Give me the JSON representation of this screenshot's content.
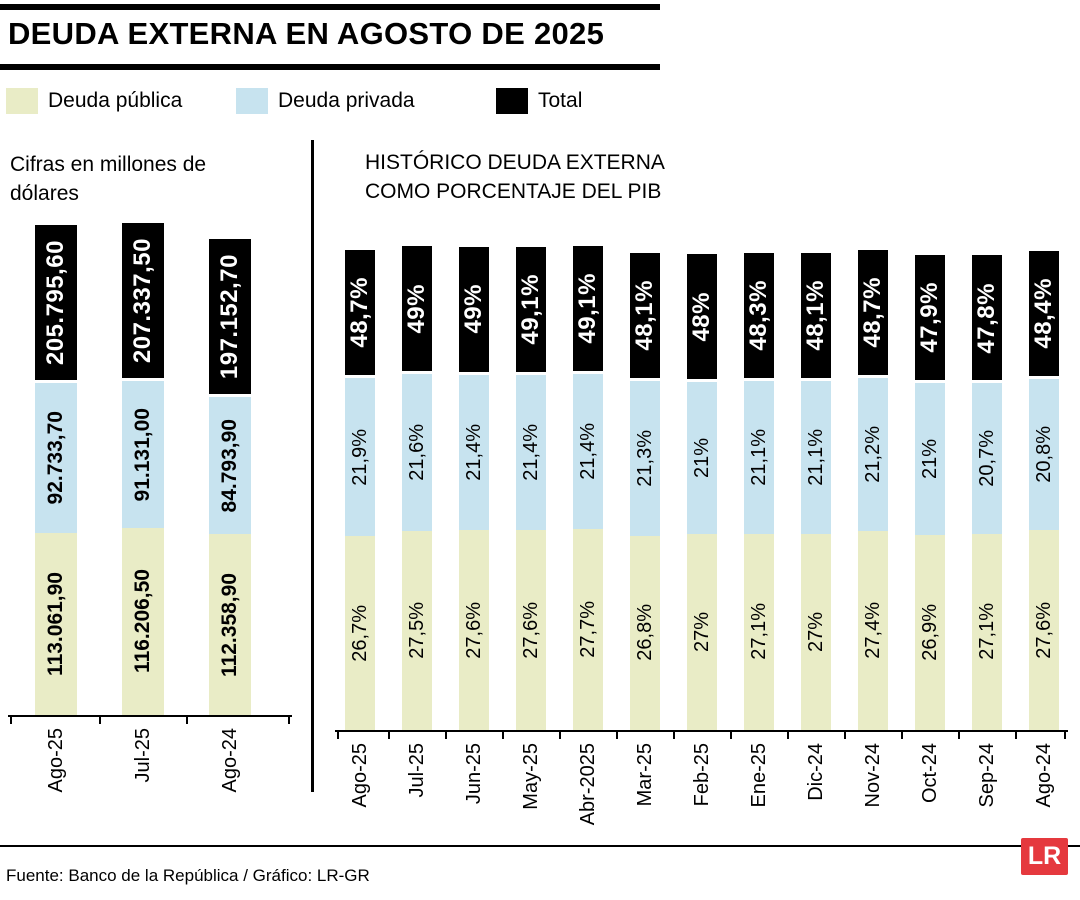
{
  "title": "DEUDA EXTERNA EN AGOSTO DE 2025",
  "legend": [
    {
      "label": "Deuda pública",
      "color": "#e9ecc6"
    },
    {
      "label": "Deuda privada",
      "color": "#c7e3ef"
    },
    {
      "label": "Total",
      "color": "#000000"
    }
  ],
  "footer": {
    "source": "Fuente: Banco de la República / Gráfico: LR-GR",
    "logo": "LR",
    "logo_color": "#e5393e"
  },
  "chart_data": [
    {
      "type": "bar",
      "stacked": true,
      "title": "Cifras en millones de dólares",
      "categories": [
        "Ago-25",
        "Jul-25",
        "Ago-24"
      ],
      "series": [
        {
          "name": "Deuda pública",
          "values": [
            113061.9,
            116206.5,
            112358.9
          ],
          "labels": [
            "113.061,90",
            "116.206,50",
            "112.358,90"
          ]
        },
        {
          "name": "Deuda privada",
          "values": [
            92733.7,
            91131.0,
            84793.9
          ],
          "labels": [
            "92.733,70",
            "91.131,00",
            "84.793,90"
          ]
        }
      ],
      "totals": [
        205795.6,
        207337.5,
        197152.7
      ],
      "total_labels": [
        "205.795,60",
        "207.337,50",
        "197.152,70"
      ]
    },
    {
      "type": "bar",
      "stacked": true,
      "title": "HISTÓRICO DEUDA EXTERNA COMO PORCENTAJE DEL PIB",
      "categories": [
        "Ago-25",
        "Jul-25",
        "Jun-25",
        "May-25",
        "Abr-2025",
        "Mar-25",
        "Feb-25",
        "Ene-25",
        "Dic-24",
        "Nov-24",
        "Oct-24",
        "Sep-24",
        "Ago-24"
      ],
      "series": [
        {
          "name": "Deuda pública",
          "values": [
            26.7,
            27.5,
            27.6,
            27.6,
            27.7,
            26.8,
            27,
            27.1,
            27,
            27.4,
            26.9,
            27.1,
            27.6
          ],
          "labels": [
            "26,7%",
            "27,5%",
            "27,6%",
            "27,6%",
            "27,7%",
            "26,8%",
            "27%",
            "27,1%",
            "27%",
            "27,4%",
            "26,9%",
            "27,1%",
            "27,6%"
          ]
        },
        {
          "name": "Deuda privada",
          "values": [
            21.9,
            21.6,
            21.4,
            21.4,
            21.4,
            21.3,
            21,
            21.1,
            21.1,
            21.2,
            21,
            20.7,
            20.8
          ],
          "labels": [
            "21,9%",
            "21,6%",
            "21,4%",
            "21,4%",
            "21,4%",
            "21,3%",
            "21%",
            "21,1%",
            "21,1%",
            "21,2%",
            "21%",
            "20,7%",
            "20,8%"
          ]
        }
      ],
      "totals": [
        48.7,
        49,
        49,
        49.1,
        49.1,
        48.1,
        48,
        48.3,
        48.1,
        48.7,
        47.9,
        47.8,
        48.4
      ],
      "total_labels": [
        "48,7%",
        "49%",
        "49%",
        "49,1%",
        "49,1%",
        "48,1%",
        "48%",
        "48,3%",
        "48,1%",
        "48,7%",
        "47,9%",
        "47,8%",
        "48,4%"
      ]
    }
  ]
}
